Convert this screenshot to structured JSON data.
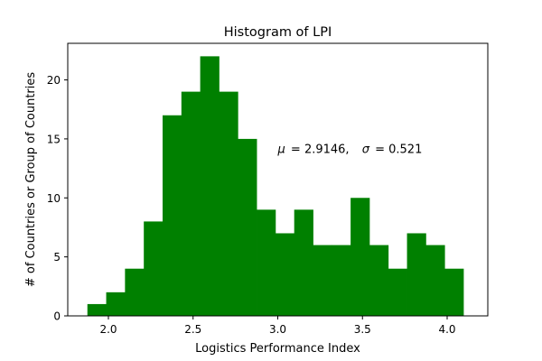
{
  "chart_data": {
    "type": "bar",
    "title": "Histogram of LPI",
    "xlabel": "Logistics Performance Index",
    "ylabel": "# of Countries or Group of Countries",
    "bar_color": "#008000",
    "bin_edges": [
      1.876,
      1.987,
      2.098,
      2.209,
      2.32,
      2.431,
      2.542,
      2.653,
      2.764,
      2.875,
      2.986,
      3.097,
      3.208,
      3.319,
      3.43,
      3.541,
      3.652,
      3.763,
      3.874,
      3.985,
      4.096
    ],
    "values": [
      1,
      2,
      4,
      8,
      17,
      19,
      22,
      19,
      15,
      9,
      7,
      9,
      6,
      6,
      10,
      6,
      4,
      7,
      6,
      4
    ],
    "xlim": [
      1.76,
      4.24
    ],
    "ylim": [
      0,
      23.1
    ],
    "xticks": [
      2.0,
      2.5,
      3.0,
      3.5,
      4.0
    ],
    "xtick_labels": [
      "2.0",
      "2.5",
      "3.0",
      "3.5",
      "4.0"
    ],
    "yticks": [
      0,
      5,
      10,
      15,
      20
    ],
    "ytick_labels": [
      "0",
      "5",
      "10",
      "15",
      "20"
    ],
    "annotation": {
      "mu_label": "μ",
      "mu_value": "= 2.9146,",
      "sigma_label": "σ",
      "sigma_value": "= 0.521",
      "x": 3.0,
      "y": 14.2
    },
    "grid": false,
    "legend": "none"
  }
}
